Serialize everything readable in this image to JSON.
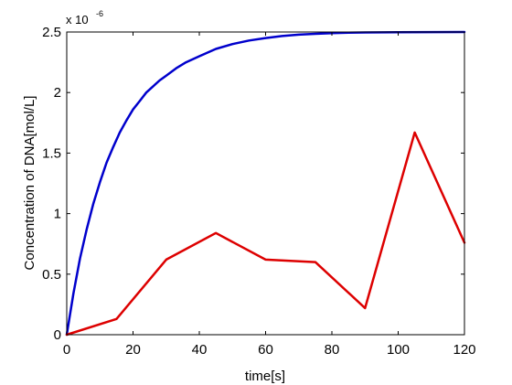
{
  "chart_data": {
    "type": "line",
    "xlabel": "time[s]",
    "ylabel": "Concentration of DNA[mol/L]",
    "exponent_base": "x 10",
    "exponent_power": "-6",
    "xlim": [
      0,
      120
    ],
    "ylim": [
      0,
      2.5
    ],
    "xticks": [
      0,
      20,
      40,
      60,
      80,
      100,
      120
    ],
    "yticks": [
      0,
      0.5,
      1,
      1.5,
      2,
      2.5
    ],
    "xtick_labels": [
      "0",
      "20",
      "40",
      "60",
      "80",
      "100",
      "120"
    ],
    "ytick_labels": [
      "0",
      "0.5",
      "1",
      "1.5",
      "2",
      "2.5"
    ],
    "grid": false,
    "series": [
      {
        "color": "#0000cc",
        "x": [
          0,
          2,
          4,
          6,
          8,
          10,
          12,
          14,
          16,
          18,
          20,
          22,
          24,
          26,
          28,
          30,
          33,
          36,
          40,
          45,
          50,
          55,
          60,
          65,
          70,
          75,
          80,
          85,
          90,
          100,
          110,
          120
        ],
        "y": [
          0,
          0.34,
          0.63,
          0.87,
          1.08,
          1.26,
          1.42,
          1.55,
          1.67,
          1.77,
          1.86,
          1.93,
          2.0,
          2.05,
          2.1,
          2.14,
          2.2,
          2.25,
          2.3,
          2.36,
          2.4,
          2.43,
          2.45,
          2.467,
          2.478,
          2.485,
          2.49,
          2.494,
          2.496,
          2.498,
          2.499,
          2.5
        ]
      },
      {
        "color": "#dd0000",
        "x": [
          0,
          15,
          30,
          45,
          60,
          75,
          90,
          105,
          120
        ],
        "y": [
          0,
          0.13,
          0.62,
          0.84,
          0.62,
          0.6,
          0.22,
          1.67,
          0.76
        ]
      }
    ]
  }
}
